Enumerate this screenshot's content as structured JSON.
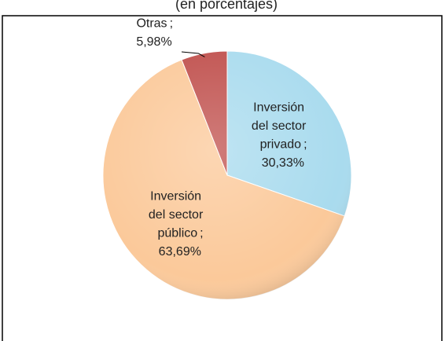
{
  "chart_data": {
    "type": "pie",
    "subtitle": "(en porcentajes)",
    "categories": [
      "Inversión del sector privado",
      "Inversión del sector público",
      "Otras"
    ],
    "values": [
      30.33,
      63.69,
      5.98
    ],
    "value_labels": [
      "30,33%",
      "63,69%",
      "5,98%"
    ],
    "label_separator": ";",
    "colors": [
      "#a9dbee",
      "#fbc99a",
      "#c0504d"
    ]
  }
}
